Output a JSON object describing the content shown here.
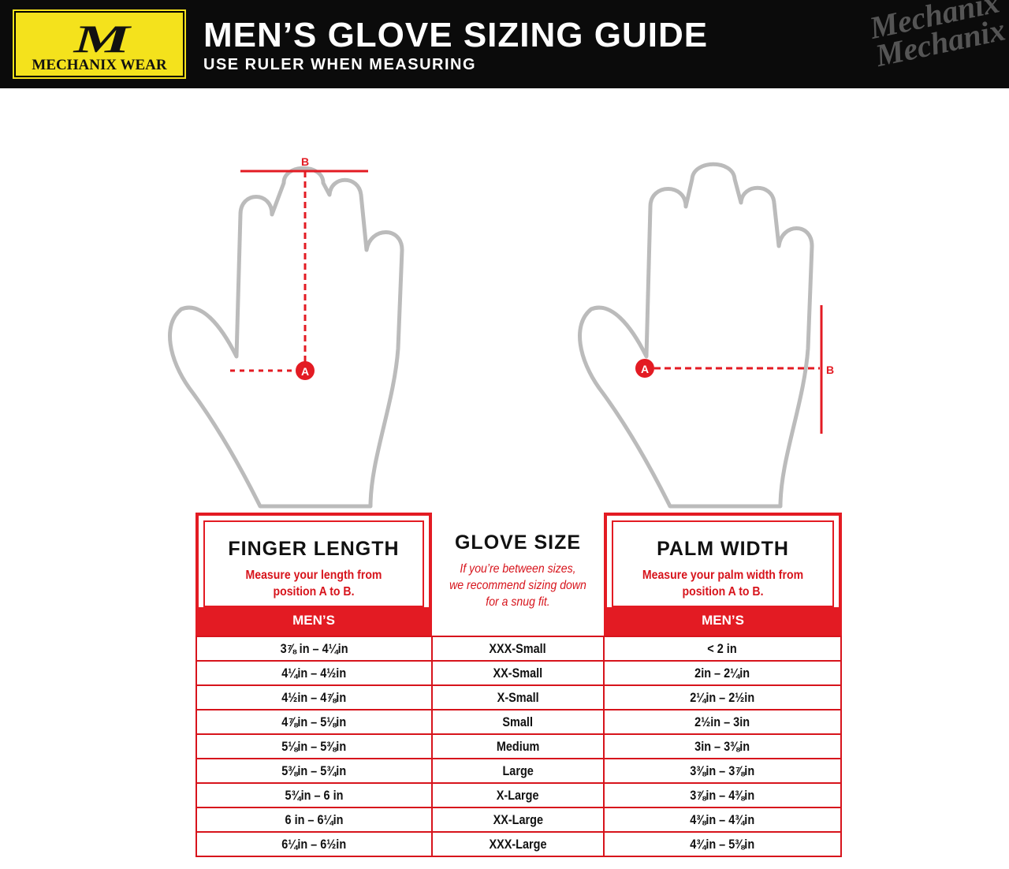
{
  "header": {
    "logo_mark": "M",
    "logo_text": "MECHANIX WEAR",
    "title": "MEN’S GLOVE SIZING GUIDE",
    "subtitle": "USE RULER WHEN MEASURING",
    "watermark": "Mechanix"
  },
  "diagram": {
    "left_label_top": "B",
    "left_label_point": "A",
    "right_label_point": "A",
    "right_label_side": "B",
    "accent": "#e31b23"
  },
  "finger": {
    "title": "FINGER LENGTH",
    "desc_1": "Measure your length from",
    "desc_2": "position A to B.",
    "men": "MEN’S"
  },
  "size": {
    "title": "GLOVE SIZE",
    "note_1": "If you’re between sizes,",
    "note_2": "we recommend sizing down",
    "note_3": "for a snug fit."
  },
  "palm": {
    "title": "PALM WIDTH",
    "desc_1": "Measure your palm width from",
    "desc_2": "position A to B.",
    "men": "MEN’S"
  },
  "rows": [
    {
      "finger": "3⅞ in – 4¼in",
      "size": "XXX-Small",
      "palm": "< 2 in"
    },
    {
      "finger": "4¼in – 4½in",
      "size": "XX-Small",
      "palm": "2in – 2¼in"
    },
    {
      "finger": "4½in – 4⅞in",
      "size": "X-Small",
      "palm": "2¼in – 2½in"
    },
    {
      "finger": "4⅞in – 5⅛in",
      "size": "Small",
      "palm": "2½in – 3in"
    },
    {
      "finger": "5⅛in – 5⅜in",
      "size": "Medium",
      "palm": "3in – 3⅜in"
    },
    {
      "finger": "5⅜in – 5¾in",
      "size": "Large",
      "palm": "3⅜in – 3⅞in"
    },
    {
      "finger": "5¾in – 6 in",
      "size": "X-Large",
      "palm": "3⅞in – 4⅜in"
    },
    {
      "finger": "6 in – 6¼in",
      "size": "XX-Large",
      "palm": "4⅜in – 4¾in"
    },
    {
      "finger": "6¼in – 6½in",
      "size": "XXX-Large",
      "palm": "4¾in – 5⅜in"
    }
  ]
}
